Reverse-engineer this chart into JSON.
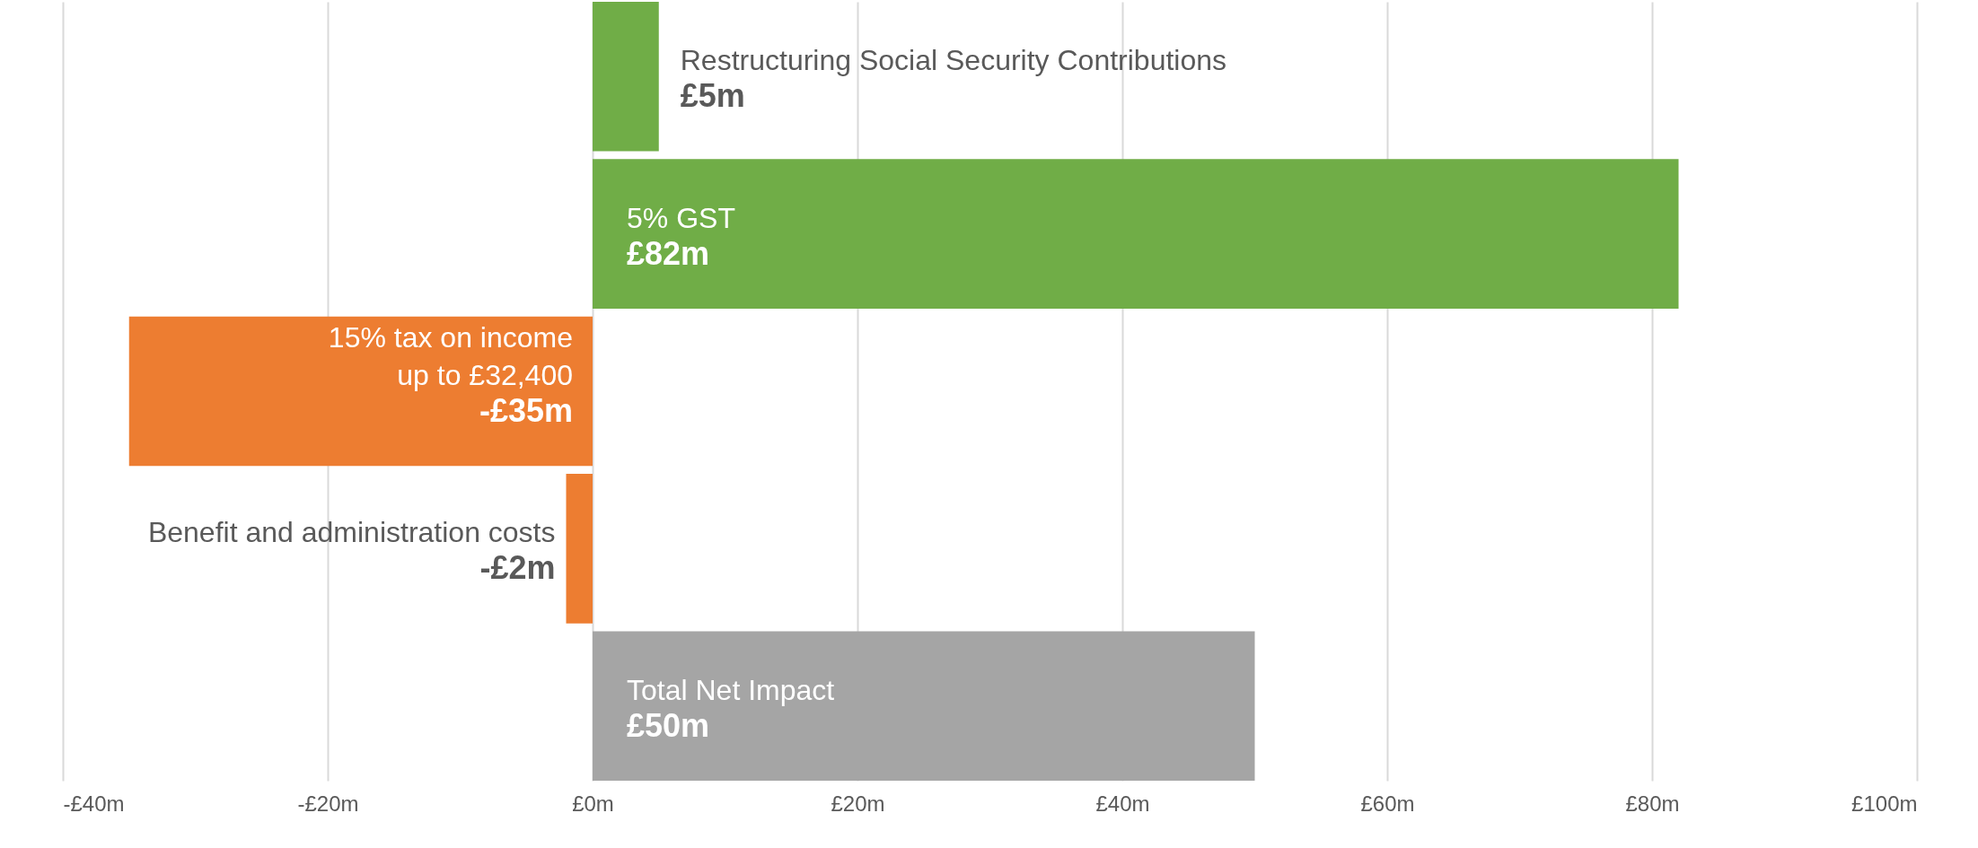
{
  "chart_data": {
    "type": "bar",
    "orientation": "horizontal",
    "categories": [
      "Restructuring Social Security Contributions",
      "5% GST",
      "15% tax on income\nup to £32,400",
      "Benefit and administration costs",
      "Total Net Impact"
    ],
    "values": [
      5,
      82,
      -35,
      -2,
      50
    ],
    "colors": [
      "#70ad47",
      "#70ad47",
      "#ed7d31",
      "#ed7d31",
      "#a5a5a5"
    ],
    "value_labels": [
      "£5m",
      "£82m",
      "-£35m",
      "-£2m",
      "£50m"
    ],
    "xlim": [
      -40,
      100
    ],
    "xticks": [
      {
        "value": -40,
        "label": "-£40m"
      },
      {
        "value": -20,
        "label": "-£20m"
      },
      {
        "value": 0,
        "label": "£0m"
      },
      {
        "value": 20,
        "label": "£20m"
      },
      {
        "value": 40,
        "label": "£40m"
      },
      {
        "value": 60,
        "label": "£60m"
      },
      {
        "value": 80,
        "label": "£80m"
      },
      {
        "value": 100,
        "label": "£100m"
      }
    ],
    "grid": "x"
  }
}
